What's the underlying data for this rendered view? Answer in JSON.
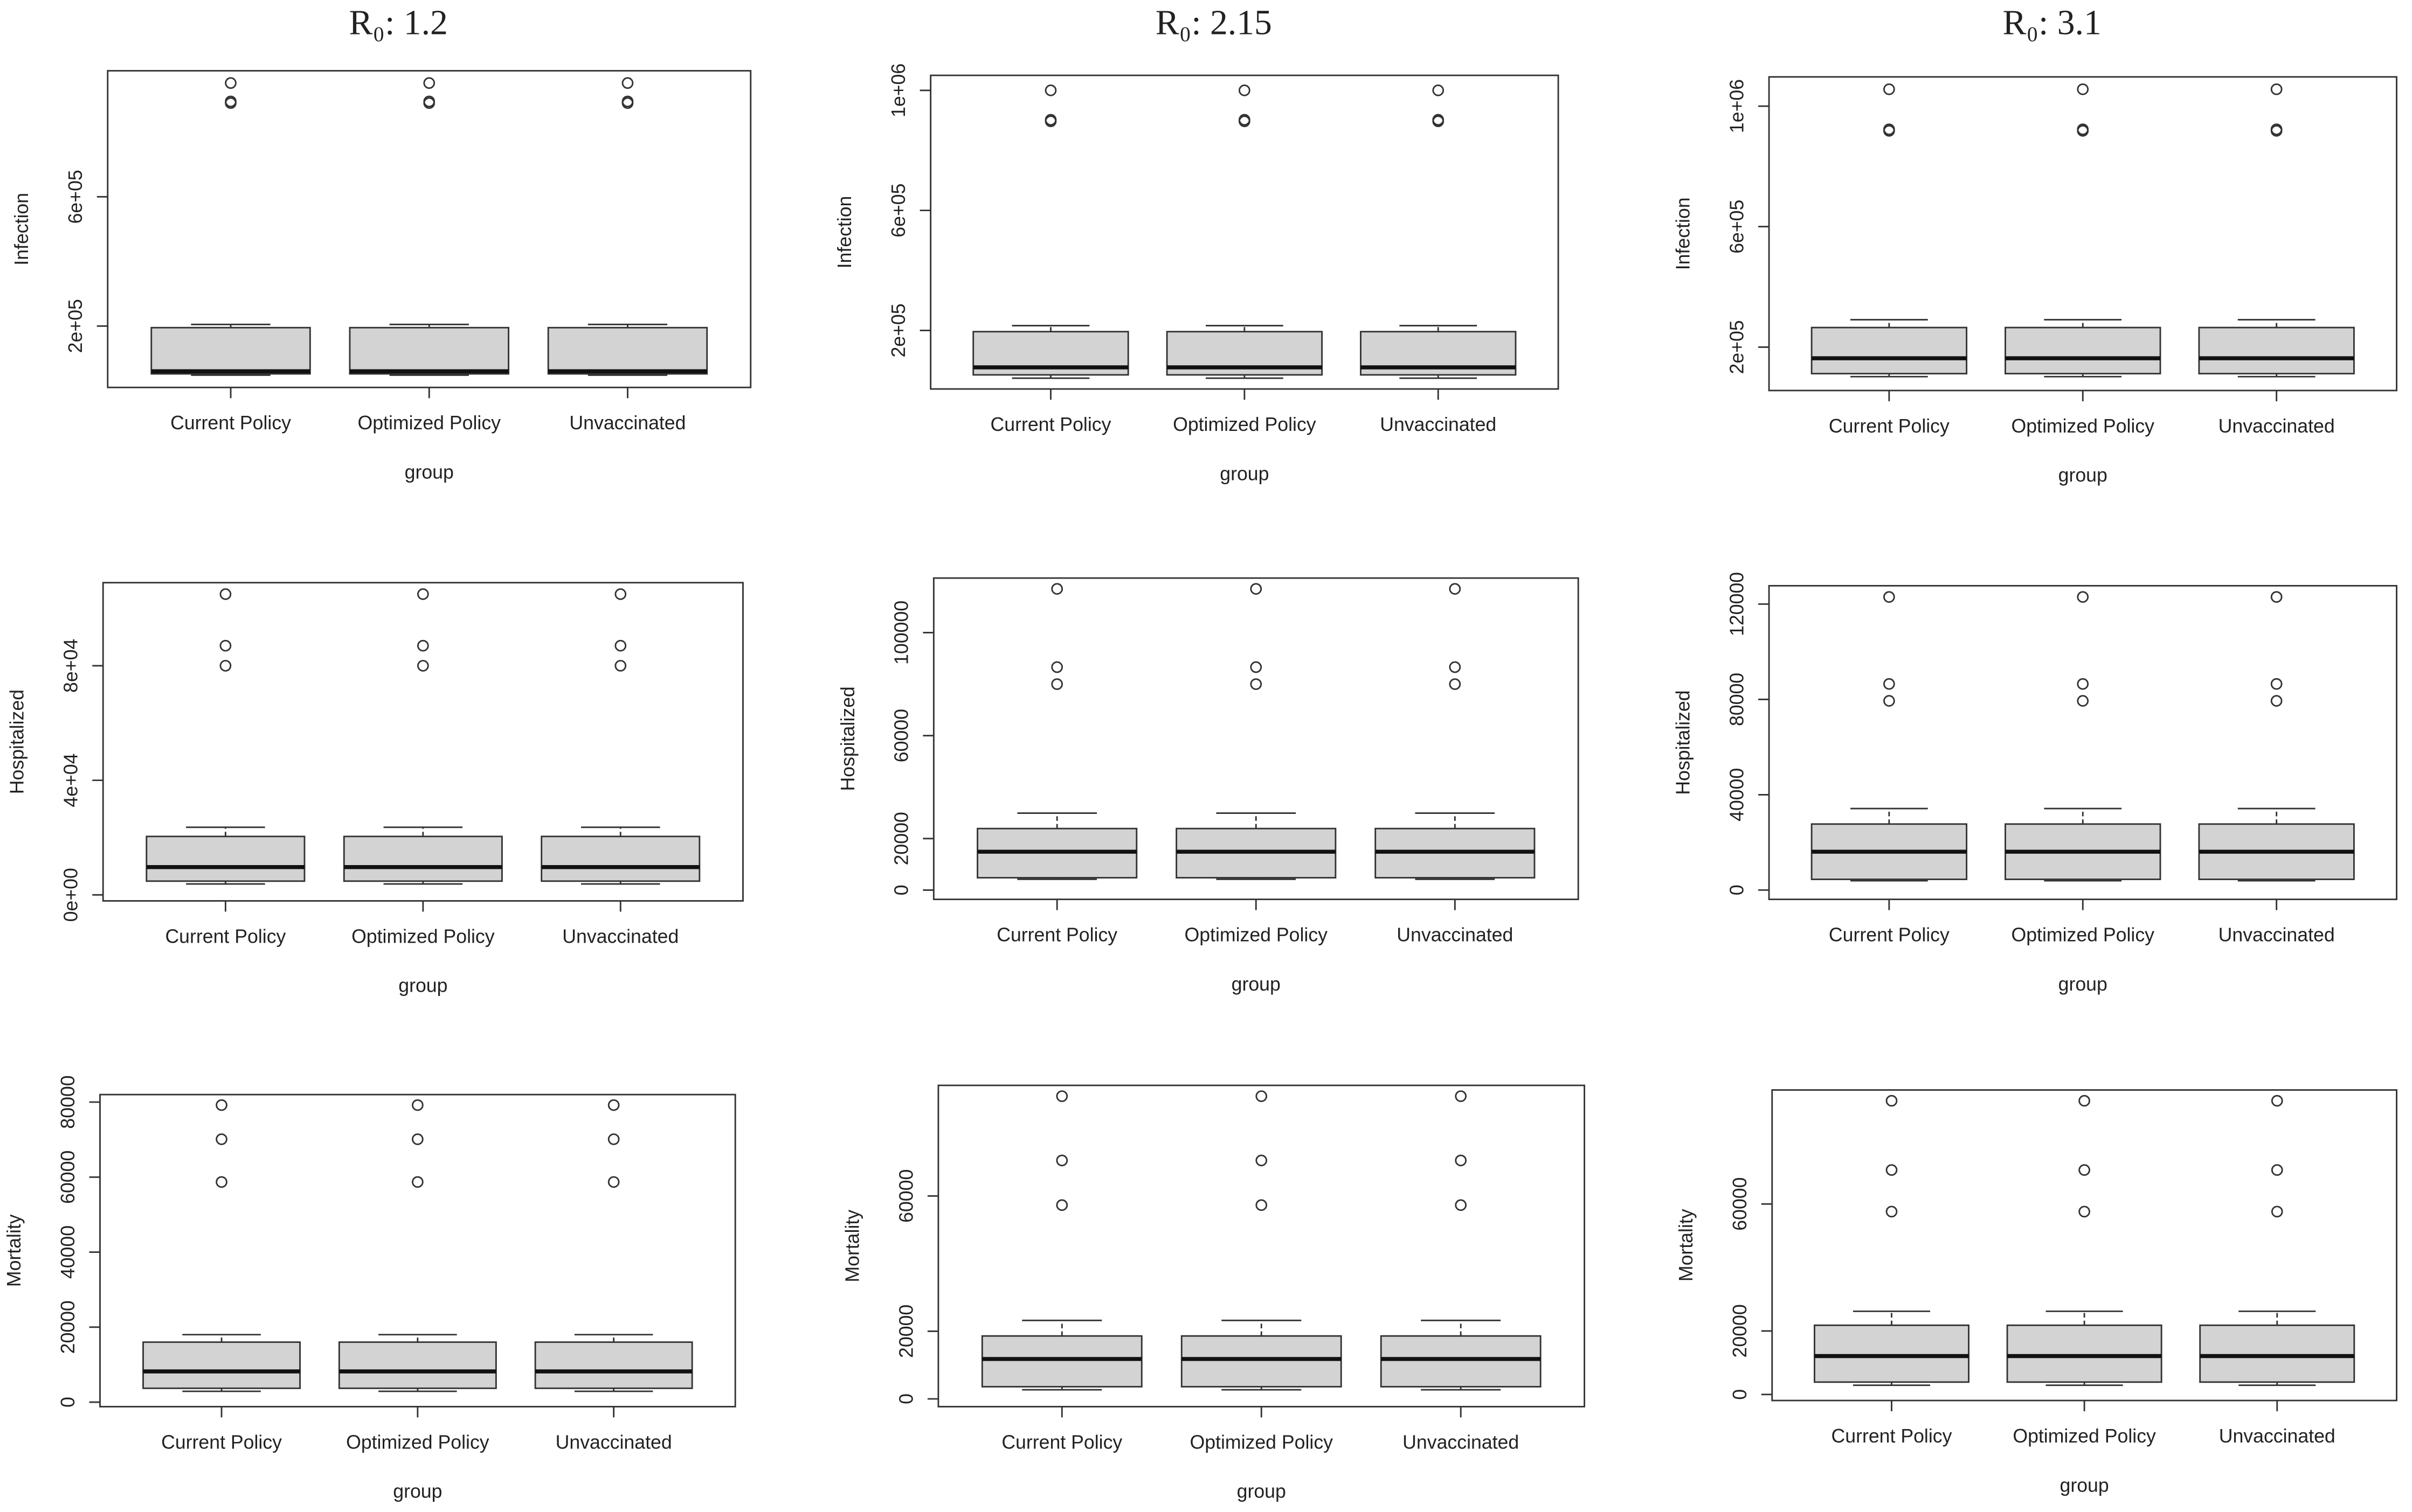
{
  "chart_data": [
    {
      "type": "box",
      "title": "R₀: 1.2",
      "xlabel": "group",
      "ylabel": "Infection",
      "color": "#d3d3d3",
      "categories": [
        "Current Policy",
        "Optimized Policy",
        "Unvaccinated"
      ],
      "boxes": [
        {
          "whislo": 48000,
          "q1": 52000,
          "med": 60000,
          "q3": 195000,
          "whishi": 205000,
          "fliers": [
            890000,
            895000,
            952000
          ]
        },
        {
          "whislo": 48000,
          "q1": 52000,
          "med": 60000,
          "q3": 195000,
          "whishi": 205000,
          "fliers": [
            890000,
            895000,
            952000
          ]
        },
        {
          "whislo": 48000,
          "q1": 52000,
          "med": 60000,
          "q3": 195000,
          "whishi": 205000,
          "fliers": [
            890000,
            895000,
            952000
          ]
        }
      ],
      "ylim": [
        10000,
        990000
      ],
      "yticks": [
        {
          "value": 200000,
          "label": "2e+05"
        },
        {
          "value": 600000,
          "label": "6e+05"
        }
      ]
    },
    {
      "type": "box",
      "title": "R₀: 2.15",
      "xlabel": "group",
      "ylabel": "Infection",
      "color": "#d3d3d3",
      "categories": [
        "Current Policy",
        "Optimized Policy",
        "Unvaccinated"
      ],
      "boxes": [
        {
          "whislo": 41000,
          "q1": 52000,
          "med": 77000,
          "q3": 196000,
          "whishi": 216000,
          "fliers": [
            897000,
            902000,
            1000000
          ]
        },
        {
          "whislo": 41000,
          "q1": 52000,
          "med": 77000,
          "q3": 196000,
          "whishi": 216000,
          "fliers": [
            897000,
            902000,
            1000000
          ]
        },
        {
          "whislo": 41000,
          "q1": 52000,
          "med": 77000,
          "q3": 196000,
          "whishi": 216000,
          "fliers": [
            897000,
            902000,
            1000000
          ]
        }
      ],
      "ylim": [
        5000,
        1050000
      ],
      "yticks": [
        {
          "value": 200000,
          "label": "2e+05"
        },
        {
          "value": 600000,
          "label": "6e+05"
        },
        {
          "value": 1000000,
          "label": "1e+06"
        }
      ]
    },
    {
      "type": "box",
      "title": "R₀: 3.1",
      "xlabel": "group",
      "ylabel": "Infection",
      "color": "#d3d3d3",
      "categories": [
        "Current Policy",
        "Optimized Policy",
        "Unvaccinated"
      ],
      "boxes": [
        {
          "whislo": 102000,
          "q1": 112000,
          "med": 163000,
          "q3": 265000,
          "whishi": 291000,
          "fliers": [
            918000,
            923000,
            1056000
          ]
        },
        {
          "whislo": 102000,
          "q1": 112000,
          "med": 163000,
          "q3": 265000,
          "whishi": 291000,
          "fliers": [
            918000,
            923000,
            1056000
          ]
        },
        {
          "whislo": 102000,
          "q1": 112000,
          "med": 163000,
          "q3": 265000,
          "whishi": 291000,
          "fliers": [
            918000,
            923000,
            1056000
          ]
        }
      ],
      "ylim": [
        56000,
        1097000
      ],
      "yticks": [
        {
          "value": 200000,
          "label": "2e+05"
        },
        {
          "value": 600000,
          "label": "6e+05"
        },
        {
          "value": 1000000,
          "label": "1e+06"
        }
      ]
    },
    {
      "type": "box",
      "xlabel": "group",
      "ylabel": "Hospitalized",
      "color": "#d3d3d3",
      "categories": [
        "Current Policy",
        "Optimized Policy",
        "Unvaccinated"
      ],
      "boxes": [
        {
          "whislo": 3800,
          "q1": 4800,
          "med": 9700,
          "q3": 20400,
          "whishi": 23600,
          "fliers": [
            80000,
            87000,
            105000
          ]
        },
        {
          "whislo": 3800,
          "q1": 4800,
          "med": 9700,
          "q3": 20400,
          "whishi": 23600,
          "fliers": [
            80000,
            87000,
            105000
          ]
        },
        {
          "whislo": 3800,
          "q1": 4800,
          "med": 9700,
          "q3": 20400,
          "whishi": 23600,
          "fliers": [
            80000,
            87000,
            105000
          ]
        }
      ],
      "ylim": [
        -2100,
        109000
      ],
      "yticks": [
        {
          "value": 0,
          "label": "0e+00"
        },
        {
          "value": 40000,
          "label": "4e+04"
        },
        {
          "value": 80000,
          "label": "8e+04"
        }
      ]
    },
    {
      "type": "box",
      "xlabel": "group",
      "ylabel": "Hospitalized",
      "color": "#d3d3d3",
      "categories": [
        "Current Policy",
        "Optimized Policy",
        "Unvaccinated"
      ],
      "boxes": [
        {
          "whislo": 4200,
          "q1": 4800,
          "med": 14900,
          "q3": 23900,
          "whishi": 29900,
          "fliers": [
            80000,
            86600,
            117000
          ]
        },
        {
          "whislo": 4200,
          "q1": 4800,
          "med": 14900,
          "q3": 23900,
          "whishi": 29900,
          "fliers": [
            80000,
            86600,
            117000
          ]
        },
        {
          "whislo": 4200,
          "q1": 4800,
          "med": 14900,
          "q3": 23900,
          "whishi": 29900,
          "fliers": [
            80000,
            86600,
            117000
          ]
        }
      ],
      "ylim": [
        -3600,
        121200
      ],
      "yticks": [
        0,
        20000,
        60000,
        100000
      ]
    },
    {
      "type": "box",
      "xlabel": "group",
      "ylabel": "Hospitalized",
      "color": "#d3d3d3",
      "categories": [
        "Current Policy",
        "Optimized Policy",
        "Unvaccinated"
      ],
      "boxes": [
        {
          "whislo": 3900,
          "q1": 4500,
          "med": 16100,
          "q3": 27700,
          "whishi": 34200,
          "fliers": [
            79400,
            86500,
            123000
          ]
        },
        {
          "whislo": 3900,
          "q1": 4500,
          "med": 16100,
          "q3": 27700,
          "whishi": 34200,
          "fliers": [
            79400,
            86500,
            123000
          ]
        },
        {
          "whislo": 3900,
          "q1": 4500,
          "med": 16100,
          "q3": 27700,
          "whishi": 34200,
          "fliers": [
            79400,
            86500,
            123000
          ]
        }
      ],
      "ylim": [
        -3900,
        127700
      ],
      "yticks": [
        0,
        40000,
        80000,
        120000
      ]
    },
    {
      "type": "box",
      "xlabel": "group",
      "ylabel": "Mortality",
      "color": "#d3d3d3",
      "categories": [
        "Current Policy",
        "Optimized Policy",
        "Unvaccinated"
      ],
      "boxes": [
        {
          "whislo": 2900,
          "q1": 3700,
          "med": 8200,
          "q3": 16000,
          "whishi": 18000,
          "fliers": [
            58700,
            70100,
            79200
          ]
        },
        {
          "whislo": 2900,
          "q1": 3700,
          "med": 8200,
          "q3": 16000,
          "whishi": 18000,
          "fliers": [
            58700,
            70100,
            79200
          ]
        },
        {
          "whislo": 2900,
          "q1": 3700,
          "med": 8200,
          "q3": 16000,
          "whishi": 18000,
          "fliers": [
            58700,
            70100,
            79200
          ]
        }
      ],
      "ylim": [
        -1200,
        82000
      ],
      "yticks": [
        0,
        20000,
        40000,
        60000,
        80000
      ]
    },
    {
      "type": "box",
      "xlabel": "group",
      "ylabel": "Mortality",
      "color": "#d3d3d3",
      "categories": [
        "Current Policy",
        "Optimized Policy",
        "Unvaccinated"
      ],
      "boxes": [
        {
          "whislo": 2700,
          "q1": 3600,
          "med": 11800,
          "q3": 18600,
          "whishi": 23200,
          "fliers": [
            57300,
            70500,
            89500
          ]
        },
        {
          "whislo": 2700,
          "q1": 3600,
          "med": 11800,
          "q3": 18600,
          "whishi": 23200,
          "fliers": [
            57300,
            70500,
            89500
          ]
        },
        {
          "whislo": 2700,
          "q1": 3600,
          "med": 11800,
          "q3": 18600,
          "whishi": 23200,
          "fliers": [
            57300,
            70500,
            89500
          ]
        }
      ],
      "ylim": [
        -2300,
        92700
      ],
      "yticks": [
        0,
        20000,
        60000
      ]
    },
    {
      "type": "box",
      "xlabel": "group",
      "ylabel": "Mortality",
      "color": "#d3d3d3",
      "categories": [
        "Current Policy",
        "Optimized Policy",
        "Unvaccinated"
      ],
      "boxes": [
        {
          "whislo": 2900,
          "q1": 3900,
          "med": 12100,
          "q3": 21800,
          "whishi": 26200,
          "fliers": [
            57600,
            70700,
            92500
          ]
        },
        {
          "whislo": 2900,
          "q1": 3900,
          "med": 12100,
          "q3": 21800,
          "whishi": 26200,
          "fliers": [
            57600,
            70700,
            92500
          ]
        },
        {
          "whislo": 2900,
          "q1": 3900,
          "med": 12100,
          "q3": 21800,
          "whishi": 26200,
          "fliers": [
            57600,
            70700,
            92500
          ]
        }
      ],
      "ylim": [
        -1900,
        95900
      ],
      "yticks": [
        0,
        20000,
        60000
      ]
    }
  ]
}
